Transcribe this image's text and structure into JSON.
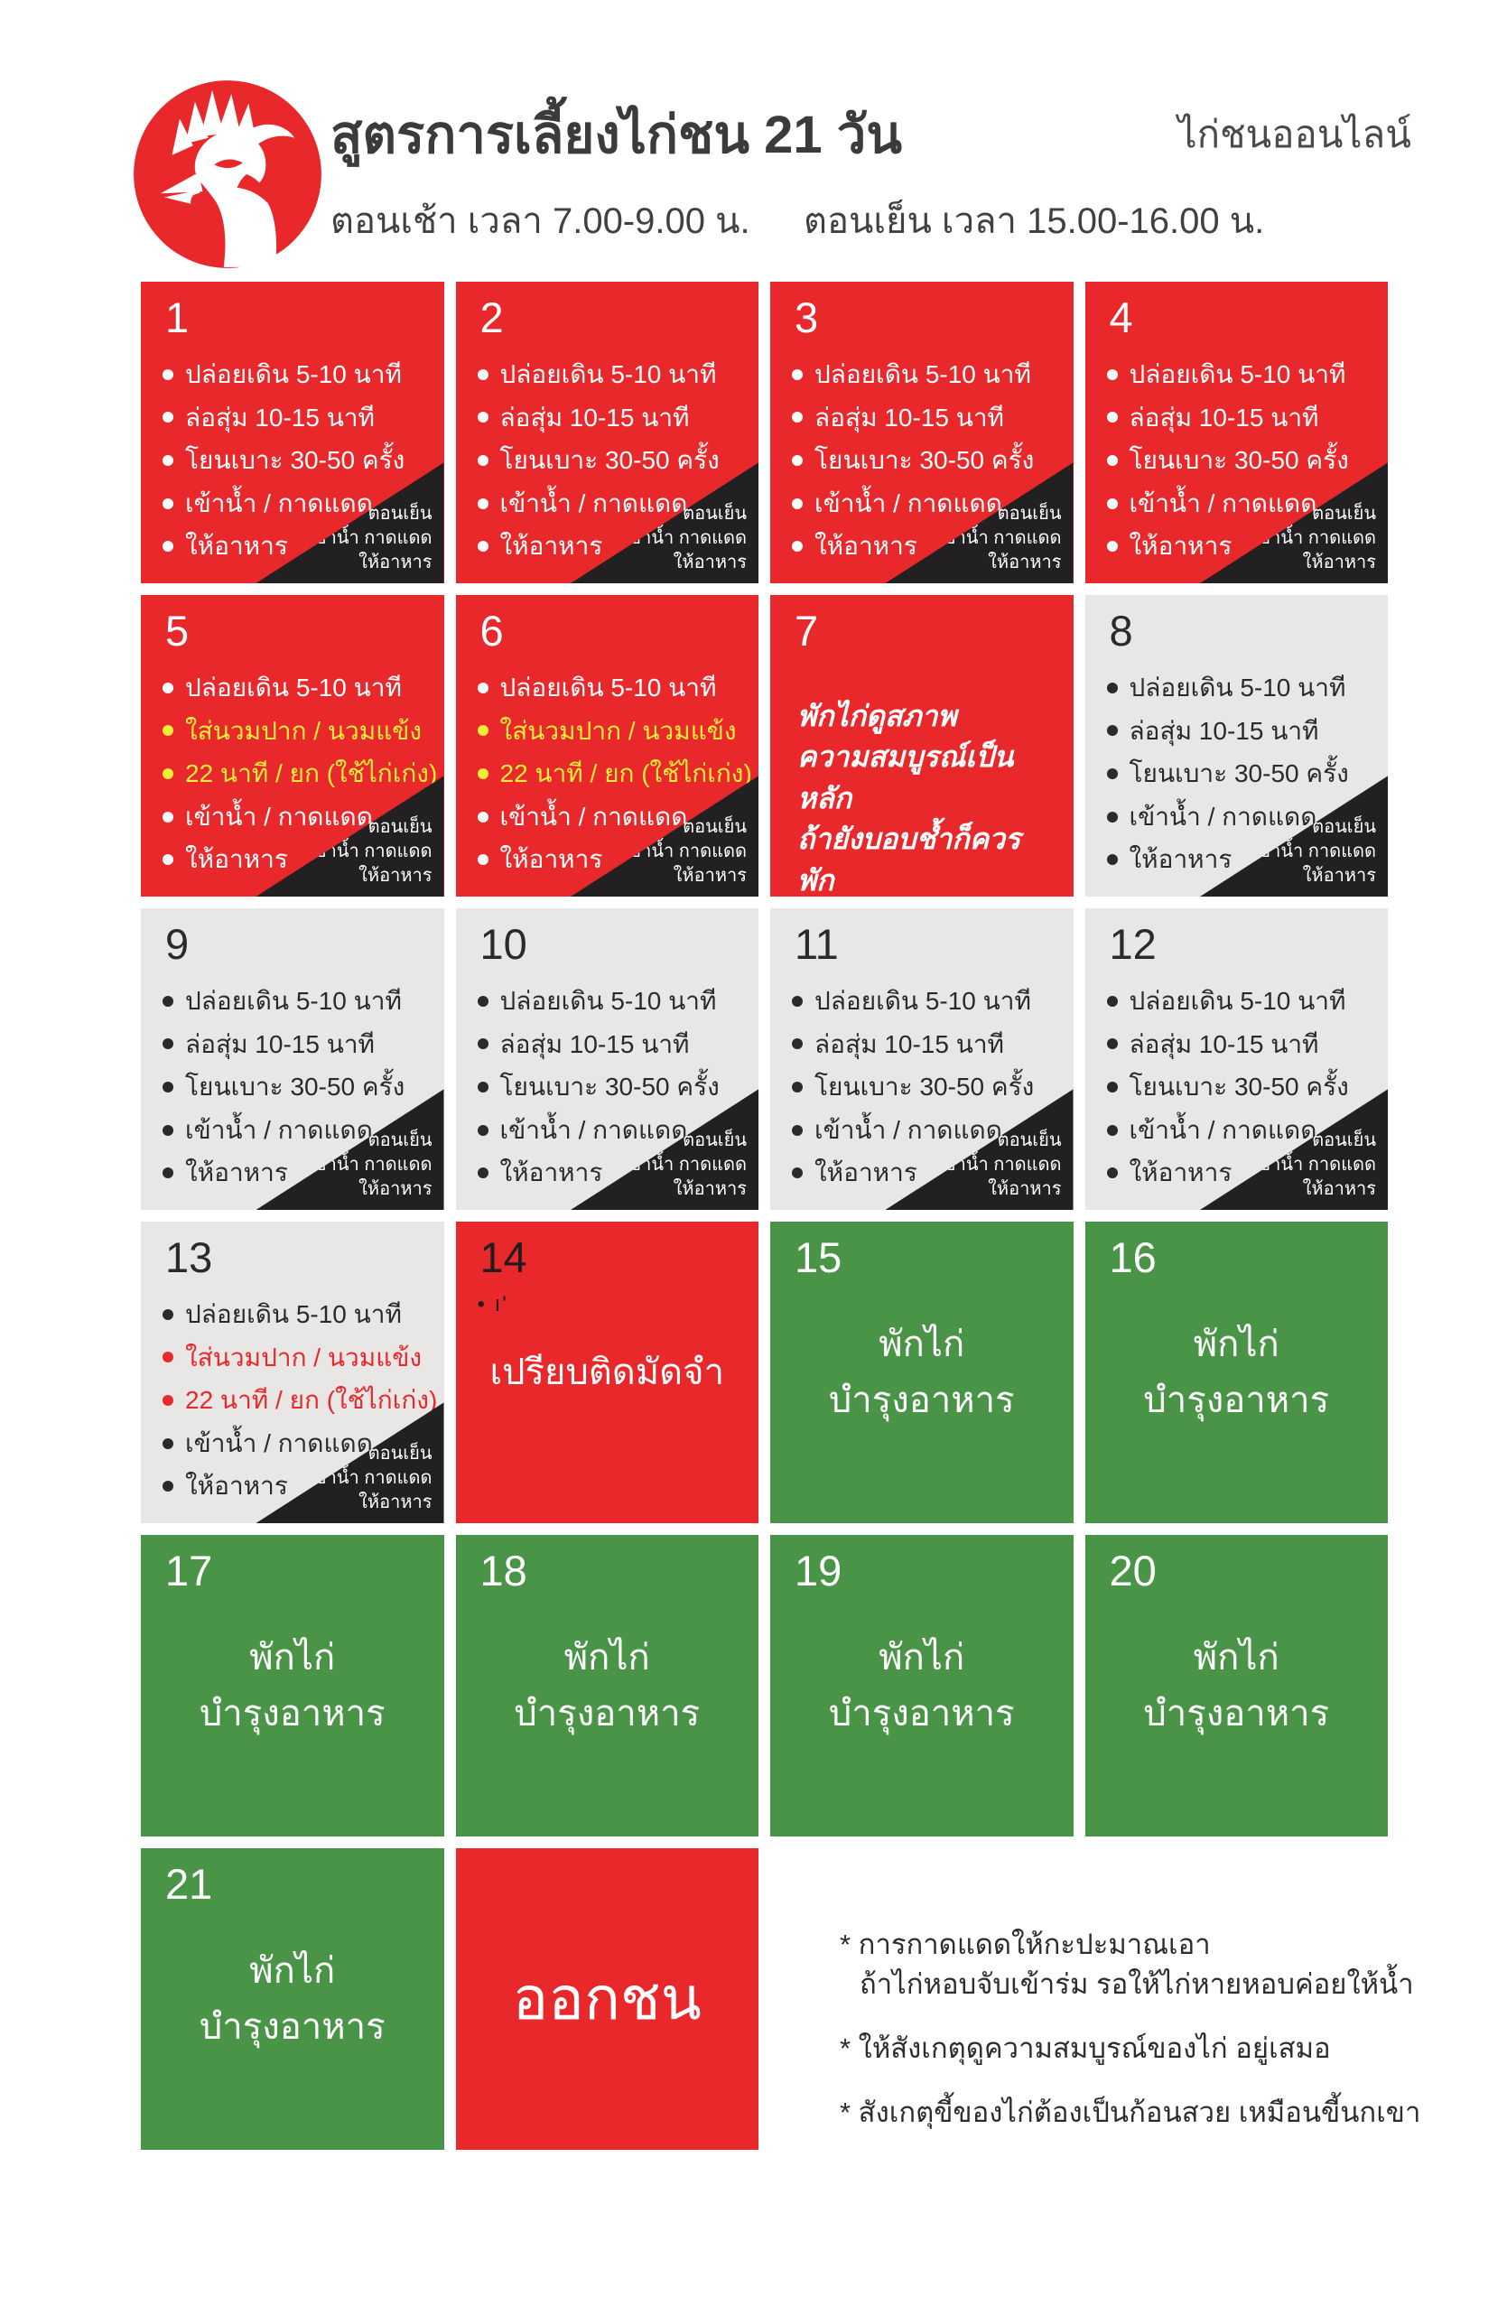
{
  "header": {
    "title": "สูตรการเลี้ยงไก่ชน  21 วัน",
    "brand": "ไก่ชนออนไลน์",
    "morning_time": "ตอนเช้า เวลา 7.00-9.00 น.",
    "evening_time": "ตอนเย็น เวลา 15.00-16.00 น."
  },
  "colors": {
    "red": "#e8282b",
    "green": "#4a9447",
    "gray_cell": "#e8e7e5",
    "corner_black": "#232021",
    "accent_yellow": "#f6ec3a",
    "text_dark": "#2b2a28"
  },
  "evening_note": {
    "lines": [
      "ตอนเย็น",
      "เข้าน้ำ กาดแดด",
      "ให้อาหาร"
    ]
  },
  "days": [
    {
      "num": "1",
      "theme": "red",
      "type": "list",
      "evening_corner": true,
      "items": [
        {
          "text": "ปล่อยเดิน 5-10 นาที",
          "tone": "base"
        },
        {
          "text": "ล่อสุ่ม 10-15 นาที",
          "tone": "base"
        },
        {
          "text": "โยนเบาะ 30-50 ครั้ง",
          "tone": "base"
        },
        {
          "text": "เข้าน้ำ / กาดแดด",
          "tone": "base"
        },
        {
          "text": "ให้อาหาร",
          "tone": "base"
        }
      ]
    },
    {
      "num": "2",
      "theme": "red",
      "type": "list",
      "evening_corner": true,
      "items": [
        {
          "text": "ปล่อยเดิน 5-10 นาที",
          "tone": "base"
        },
        {
          "text": "ล่อสุ่ม 10-15 นาที",
          "tone": "base"
        },
        {
          "text": "โยนเบาะ 30-50 ครั้ง",
          "tone": "base"
        },
        {
          "text": "เข้าน้ำ / กาดแดด",
          "tone": "base"
        },
        {
          "text": "ให้อาหาร",
          "tone": "base"
        }
      ]
    },
    {
      "num": "3",
      "theme": "red",
      "type": "list",
      "evening_corner": true,
      "items": [
        {
          "text": "ปล่อยเดิน 5-10 นาที",
          "tone": "base"
        },
        {
          "text": "ล่อสุ่ม 10-15 นาที",
          "tone": "base"
        },
        {
          "text": "โยนเบาะ 30-50 ครั้ง",
          "tone": "base"
        },
        {
          "text": "เข้าน้ำ / กาดแดด",
          "tone": "base"
        },
        {
          "text": "ให้อาหาร",
          "tone": "base"
        }
      ]
    },
    {
      "num": "4",
      "theme": "red",
      "type": "list",
      "evening_corner": true,
      "items": [
        {
          "text": "ปล่อยเดิน 5-10 นาที",
          "tone": "base"
        },
        {
          "text": "ล่อสุ่ม 10-15 นาที",
          "tone": "base"
        },
        {
          "text": "โยนเบาะ 30-50 ครั้ง",
          "tone": "base"
        },
        {
          "text": "เข้าน้ำ / กาดแดด",
          "tone": "base"
        },
        {
          "text": "ให้อาหาร",
          "tone": "base"
        }
      ]
    },
    {
      "num": "5",
      "theme": "red",
      "type": "list",
      "evening_corner": true,
      "items": [
        {
          "text": "ปล่อยเดิน 5-10 นาที",
          "tone": "base"
        },
        {
          "text": "ใส่นวมปาก / นวมแข้ง",
          "tone": "accent"
        },
        {
          "text": "22 นาที / ยก (ใช้ไก่เก่ง)",
          "tone": "accent"
        },
        {
          "text": "เข้าน้ำ / กาดแดด",
          "tone": "base"
        },
        {
          "text": "ให้อาหาร",
          "tone": "base"
        }
      ]
    },
    {
      "num": "6",
      "theme": "red",
      "type": "list",
      "evening_corner": true,
      "items": [
        {
          "text": "ปล่อยเดิน 5-10 นาที",
          "tone": "base"
        },
        {
          "text": "ใส่นวมปาก / นวมแข้ง",
          "tone": "accent"
        },
        {
          "text": "22 นาที / ยก (ใช้ไก่เก่ง)",
          "tone": "accent"
        },
        {
          "text": "เข้าน้ำ / กาดแดด",
          "tone": "base"
        },
        {
          "text": "ให้อาหาร",
          "tone": "base"
        }
      ]
    },
    {
      "num": "7",
      "theme": "red",
      "type": "note",
      "evening_corner": false,
      "note_lines": [
        "พักไก่ดูสภาพ",
        "ความสมบูรณ์เป็นหลัก",
        "ถ้ายังบอบช้ำก็ควรพัก"
      ]
    },
    {
      "num": "8",
      "theme": "gray",
      "type": "list",
      "evening_corner": true,
      "items": [
        {
          "text": "ปล่อยเดิน 5-10 นาที",
          "tone": "base"
        },
        {
          "text": "ล่อสุ่ม 10-15 นาที",
          "tone": "base"
        },
        {
          "text": "โยนเบาะ 30-50 ครั้ง",
          "tone": "base"
        },
        {
          "text": "เข้าน้ำ / กาดแดด",
          "tone": "base"
        },
        {
          "text": "ให้อาหาร",
          "tone": "base"
        }
      ]
    },
    {
      "num": "9",
      "theme": "gray",
      "type": "list",
      "evening_corner": true,
      "items": [
        {
          "text": "ปล่อยเดิน 5-10 นาที",
          "tone": "base"
        },
        {
          "text": "ล่อสุ่ม 10-15 นาที",
          "tone": "base"
        },
        {
          "text": "โยนเบาะ 30-50 ครั้ง",
          "tone": "base"
        },
        {
          "text": "เข้าน้ำ / กาดแดด",
          "tone": "base"
        },
        {
          "text": "ให้อาหาร",
          "tone": "base"
        }
      ]
    },
    {
      "num": "10",
      "theme": "gray",
      "type": "list",
      "evening_corner": true,
      "items": [
        {
          "text": "ปล่อยเดิน 5-10 นาที",
          "tone": "base"
        },
        {
          "text": "ล่อสุ่ม 10-15 นาที",
          "tone": "base"
        },
        {
          "text": "โยนเบาะ 30-50 ครั้ง",
          "tone": "base"
        },
        {
          "text": "เข้าน้ำ / กาดแดด",
          "tone": "base"
        },
        {
          "text": "ให้อาหาร",
          "tone": "base"
        }
      ]
    },
    {
      "num": "11",
      "theme": "gray",
      "type": "list",
      "evening_corner": true,
      "items": [
        {
          "text": "ปล่อยเดิน 5-10 นาที",
          "tone": "base"
        },
        {
          "text": "ล่อสุ่ม 10-15 นาที",
          "tone": "base"
        },
        {
          "text": "โยนเบาะ 30-50 ครั้ง",
          "tone": "base"
        },
        {
          "text": "เข้าน้ำ / กาดแดด",
          "tone": "base"
        },
        {
          "text": "ให้อาหาร",
          "tone": "base"
        }
      ]
    },
    {
      "num": "12",
      "theme": "gray",
      "type": "list",
      "evening_corner": true,
      "items": [
        {
          "text": "ปล่อยเดิน 5-10 นาที",
          "tone": "base"
        },
        {
          "text": "ล่อสุ่ม 10-15 นาที",
          "tone": "base"
        },
        {
          "text": "โยนเบาะ 30-50 ครั้ง",
          "tone": "base"
        },
        {
          "text": "เข้าน้ำ / กาดแดด",
          "tone": "base"
        },
        {
          "text": "ให้อาหาร",
          "tone": "base"
        }
      ]
    },
    {
      "num": "13",
      "theme": "gray",
      "type": "list",
      "evening_corner": true,
      "items": [
        {
          "text": "ปล่อยเดิน 5-10 นาที",
          "tone": "base"
        },
        {
          "text": "ใส่นวมปาก / นวมแข้ง",
          "tone": "accent"
        },
        {
          "text": "22 นาที / ยก (ใช้ไก่เก่ง)",
          "tone": "accent"
        },
        {
          "text": "เข้าน้ำ / กาดแดด",
          "tone": "base"
        },
        {
          "text": "ให้อาหาร",
          "tone": "base"
        }
      ]
    },
    {
      "num": "14",
      "theme": "red",
      "type": "center",
      "num_dark": true,
      "artifact": "• ı'",
      "label_lines": [
        "เปรียบติดมัดจำ"
      ]
    },
    {
      "num": "15",
      "theme": "green",
      "type": "center",
      "label_lines": [
        "พักไก่",
        "บำรุงอาหาร"
      ]
    },
    {
      "num": "16",
      "theme": "green",
      "type": "center",
      "label_lines": [
        "พักไก่",
        "บำรุงอาหาร"
      ]
    },
    {
      "num": "17",
      "theme": "green",
      "type": "center",
      "label_lines": [
        "พักไก่",
        "บำรุงอาหาร"
      ]
    },
    {
      "num": "18",
      "theme": "green",
      "type": "center",
      "label_lines": [
        "พักไก่",
        "บำรุงอาหาร"
      ]
    },
    {
      "num": "19",
      "theme": "green",
      "type": "center",
      "label_lines": [
        "พักไก่",
        "บำรุงอาหาร"
      ]
    },
    {
      "num": "20",
      "theme": "green",
      "type": "center",
      "label_lines": [
        "พักไก่",
        "บำรุงอาหาร"
      ]
    },
    {
      "num": "21",
      "theme": "green",
      "type": "center",
      "label_lines": [
        "พักไก่",
        "บำรุงอาหาร"
      ]
    },
    {
      "num": "",
      "theme": "red",
      "type": "center",
      "big": true,
      "name": "fight-cell",
      "label_lines": [
        "ออกชน"
      ]
    }
  ],
  "footnotes": [
    {
      "lines": [
        "* การกาดแดดให้กะปะมาณเอา",
        "ถ้าไก่หอบจับเข้าร่ม รอให้ไก่หายหอบค่อยให้น้ำ"
      ]
    },
    {
      "lines": [
        "* ให้สังเกตุดูความสมบูรณ์ของไก่ อยู่เสมอ"
      ]
    },
    {
      "lines": [
        "* สังเกตุขี้ของไก่ต้องเป็นก้อนสวย เหมือนขี้นกเขา"
      ]
    }
  ]
}
